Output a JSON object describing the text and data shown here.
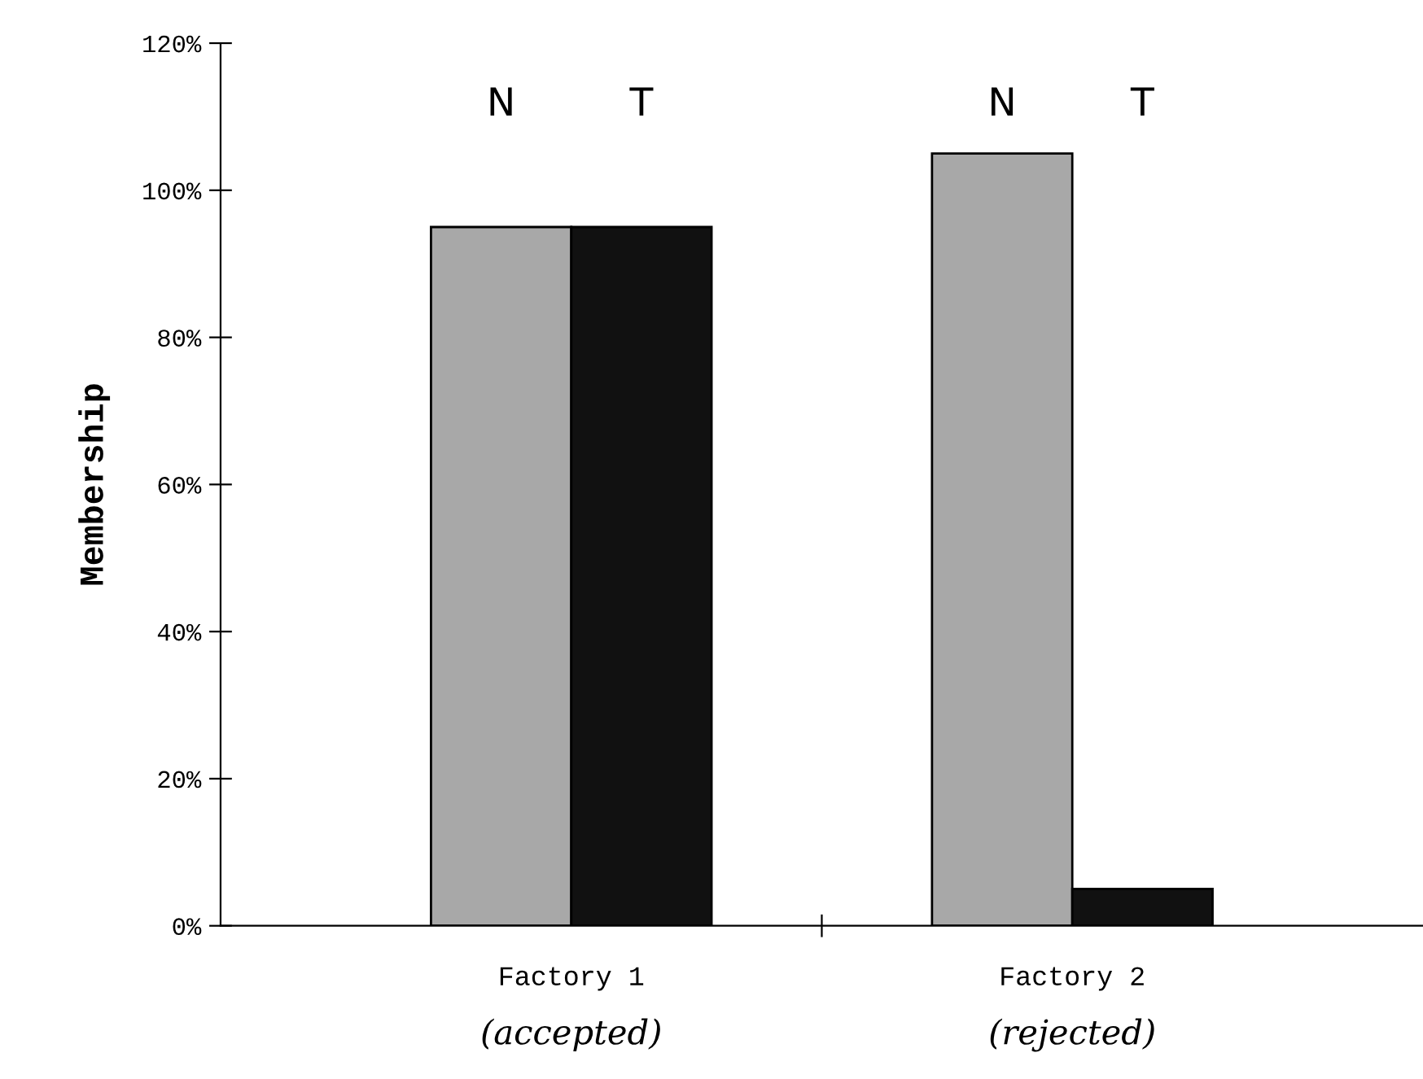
{
  "chart_data": {
    "type": "bar",
    "ylabel": "Membership",
    "categories": [
      "Factory 1\n(accepted)",
      "Factory 2\n(rejected)"
    ],
    "series": [
      {
        "name": "N",
        "color": "#a8a8a8",
        "values": [
          95,
          105
        ]
      },
      {
        "name": "T",
        "color": "#111111",
        "values": [
          95,
          5
        ]
      }
    ],
    "ylim": [
      0,
      120
    ],
    "yticks": [
      {
        "value": 0,
        "label": "0%"
      },
      {
        "value": 20,
        "label": "20%"
      },
      {
        "value": 40,
        "label": "40%"
      },
      {
        "value": 60,
        "label": "60%"
      },
      {
        "value": 80,
        "label": "80%"
      },
      {
        "value": 100,
        "label": "100%"
      },
      {
        "value": 120,
        "label": "120%"
      }
    ],
    "grid": false,
    "legend": false
  }
}
